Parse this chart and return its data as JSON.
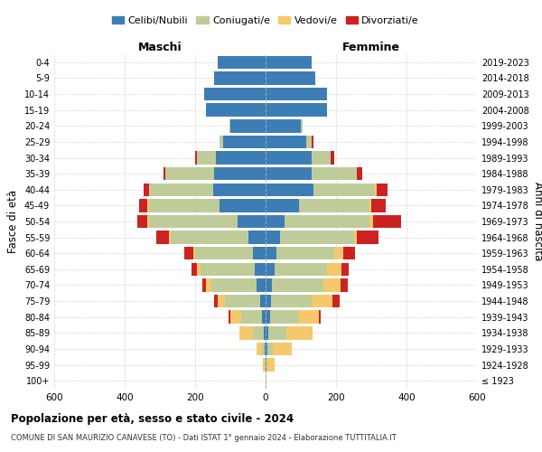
{
  "age_groups": [
    "100+",
    "95-99",
    "90-94",
    "85-89",
    "80-84",
    "75-79",
    "70-74",
    "65-69",
    "60-64",
    "55-59",
    "50-54",
    "45-49",
    "40-44",
    "35-39",
    "30-34",
    "25-29",
    "20-24",
    "15-19",
    "10-14",
    "5-9",
    "0-4"
  ],
  "birth_years": [
    "≤ 1923",
    "1924-1928",
    "1929-1933",
    "1934-1938",
    "1939-1943",
    "1944-1948",
    "1949-1953",
    "1954-1958",
    "1959-1963",
    "1964-1968",
    "1969-1973",
    "1974-1978",
    "1979-1983",
    "1984-1988",
    "1989-1993",
    "1994-1998",
    "1999-2003",
    "2004-2008",
    "2009-2013",
    "2014-2018",
    "2019-2023"
  ],
  "colors": {
    "celibi": "#3d7db5",
    "coniugati": "#bfcc99",
    "vedovi": "#f5c96b",
    "divorziati": "#cc2222"
  },
  "males": {
    "celibi": [
      0,
      1,
      2,
      5,
      10,
      15,
      25,
      30,
      35,
      50,
      80,
      130,
      150,
      145,
      140,
      120,
      100,
      170,
      175,
      145,
      135
    ],
    "coniugati": [
      0,
      2,
      8,
      30,
      60,
      100,
      130,
      155,
      165,
      220,
      250,
      200,
      180,
      140,
      55,
      10,
      2,
      0,
      0,
      0,
      0
    ],
    "vedovi": [
      0,
      5,
      15,
      40,
      30,
      20,
      15,
      10,
      5,
      5,
      5,
      5,
      0,
      0,
      0,
      0,
      0,
      0,
      0,
      0,
      0
    ],
    "divorziati": [
      0,
      0,
      0,
      0,
      5,
      10,
      10,
      15,
      25,
      35,
      30,
      25,
      15,
      5,
      5,
      0,
      0,
      0,
      0,
      0,
      0
    ]
  },
  "females": {
    "celibi": [
      0,
      2,
      5,
      8,
      12,
      15,
      18,
      25,
      30,
      40,
      55,
      95,
      135,
      130,
      130,
      115,
      100,
      175,
      175,
      140,
      130
    ],
    "coniugati": [
      0,
      3,
      15,
      50,
      80,
      115,
      145,
      150,
      165,
      210,
      240,
      200,
      175,
      130,
      55,
      15,
      5,
      0,
      0,
      0,
      0
    ],
    "vedovi": [
      2,
      20,
      55,
      75,
      60,
      60,
      50,
      40,
      25,
      10,
      10,
      5,
      5,
      0,
      0,
      0,
      0,
      0,
      0,
      0,
      0
    ],
    "divorziati": [
      0,
      0,
      0,
      0,
      5,
      20,
      20,
      20,
      35,
      60,
      80,
      40,
      30,
      15,
      10,
      5,
      0,
      0,
      0,
      0,
      0
    ]
  },
  "title": "Popolazione per età, sesso e stato civile - 2024",
  "subtitle": "COMUNE DI SAN MAURIZIO CANAVESE (TO) - Dati ISTAT 1° gennaio 2024 - Elaborazione TUTTITALIA.IT",
  "xlabel_left": "Maschi",
  "xlabel_right": "Femmine",
  "ylabel_left": "Fasce di età",
  "ylabel_right": "Anni di nascita",
  "legend_labels": [
    "Celibi/Nubili",
    "Coniugati/e",
    "Vedovi/e",
    "Divorziati/e"
  ],
  "xlim": 600,
  "bg_color": "#ffffff",
  "grid_color": "#cccccc"
}
